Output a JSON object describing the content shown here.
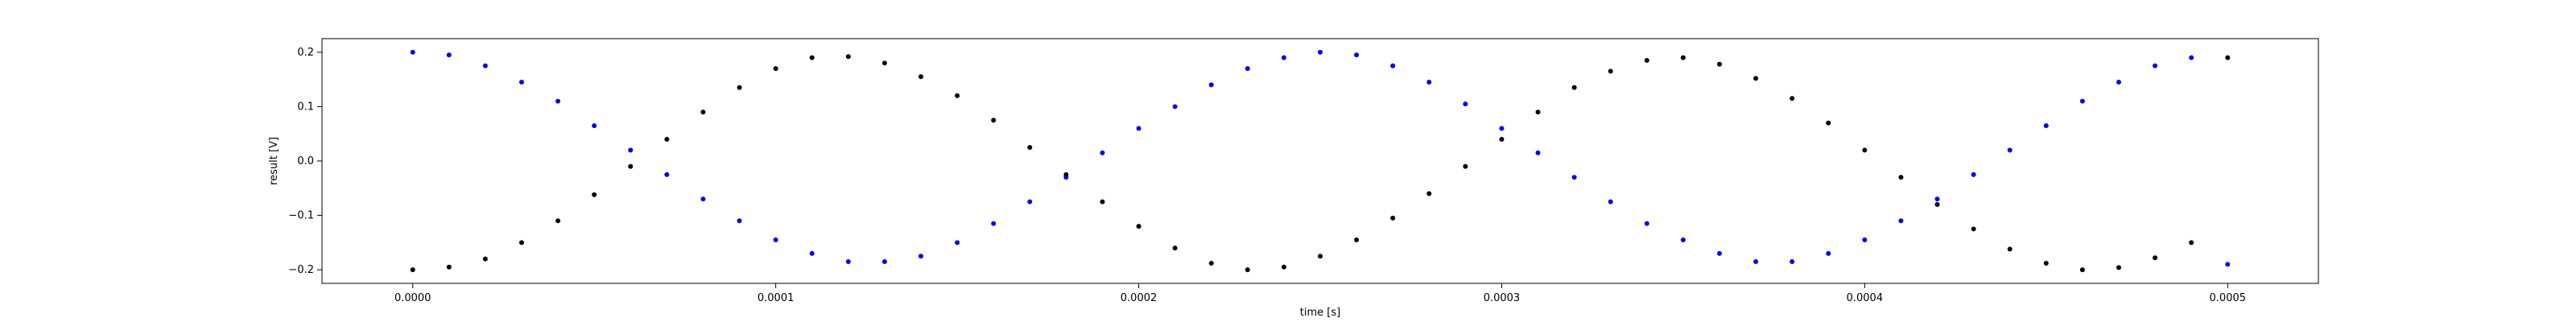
{
  "chart_data": {
    "type": "scatter",
    "title": "",
    "xlabel": "time [s]",
    "ylabel": "result [V]",
    "xlim": [
      -2.5e-05,
      0.000525
    ],
    "ylim": [
      -0.225,
      0.225
    ],
    "xticks": [
      {
        "value": 0.0,
        "label": "0.0000"
      },
      {
        "value": 0.0001,
        "label": "0.0001"
      },
      {
        "value": 0.0002,
        "label": "0.0002"
      },
      {
        "value": 0.0003,
        "label": "0.0003"
      },
      {
        "value": 0.0004,
        "label": "0.0004"
      },
      {
        "value": 0.0005,
        "label": "0.0005"
      }
    ],
    "yticks": [
      {
        "value": -0.2,
        "label": "−0.2"
      },
      {
        "value": -0.1,
        "label": "−0.1"
      },
      {
        "value": 0.0,
        "label": "0.0"
      },
      {
        "value": 0.1,
        "label": "0.1"
      },
      {
        "value": 0.2,
        "label": "0.2"
      }
    ],
    "grid": false,
    "series": [
      {
        "color": "#0000ff",
        "marker": "dot",
        "x": [
          0.0,
          1e-05,
          2e-05,
          3e-05,
          4e-05,
          5e-05,
          6e-05,
          7e-05,
          8e-05,
          9e-05,
          0.0001,
          0.00011,
          0.00012,
          0.00013,
          0.00014,
          0.00015,
          0.00016,
          0.00017,
          0.00018,
          0.00019,
          0.0002,
          0.00021,
          0.00022,
          0.00023,
          0.00024,
          0.00025,
          0.00026,
          0.00027,
          0.00028,
          0.00029,
          0.0003,
          0.00031,
          0.00032,
          0.00033,
          0.00034,
          0.00035,
          0.00036,
          0.00037,
          0.00038,
          0.00039,
          0.0004,
          0.00041,
          0.00042,
          0.00043,
          0.00044,
          0.00045,
          0.00046,
          0.00047,
          0.00048,
          0.00049,
          0.0005
        ],
        "y": [
          0.2,
          0.195,
          0.175,
          0.145,
          0.11,
          0.065,
          0.02,
          -0.025,
          -0.07,
          -0.11,
          -0.145,
          -0.17,
          -0.185,
          -0.185,
          -0.175,
          -0.15,
          -0.115,
          -0.075,
          -0.03,
          0.015,
          0.06,
          0.1,
          0.14,
          0.17,
          0.19,
          0.2,
          0.195,
          0.175,
          0.145,
          0.105,
          0.06,
          0.015,
          -0.03,
          -0.075,
          -0.115,
          -0.145,
          -0.17,
          -0.185,
          -0.185,
          -0.17,
          -0.145,
          -0.11,
          -0.07,
          -0.025,
          0.02,
          0.065,
          0.11,
          0.145,
          0.175,
          0.19,
          -0.19
        ]
      },
      {
        "color": "#000000",
        "marker": "dot",
        "x": [
          0.0,
          1e-05,
          2e-05,
          3e-05,
          4e-05,
          5e-05,
          6e-05,
          7e-05,
          8e-05,
          9e-05,
          0.0001,
          0.00011,
          0.00012,
          0.00013,
          0.00014,
          0.00015,
          0.00016,
          0.00017,
          0.00018,
          0.00019,
          0.0002,
          0.00021,
          0.00022,
          0.00023,
          0.00024,
          0.00025,
          0.00026,
          0.00027,
          0.00028,
          0.00029,
          0.0003,
          0.00031,
          0.00032,
          0.00033,
          0.00034,
          0.00035,
          0.00036,
          0.00037,
          0.00038,
          0.00039,
          0.0004,
          0.00041,
          0.00042,
          0.00043,
          0.00044,
          0.00045,
          0.00046,
          0.00047,
          0.00048,
          0.00049,
          0.0005
        ],
        "y": [
          -0.2,
          -0.195,
          -0.18,
          -0.15,
          -0.11,
          -0.062,
          -0.01,
          0.04,
          0.09,
          0.135,
          0.17,
          0.19,
          0.192,
          0.18,
          0.155,
          0.12,
          0.075,
          0.025,
          -0.025,
          -0.075,
          -0.12,
          -0.16,
          -0.188,
          -0.2,
          -0.195,
          -0.175,
          -0.145,
          -0.105,
          -0.06,
          -0.01,
          0.04,
          0.09,
          0.135,
          0.165,
          0.185,
          0.19,
          0.178,
          0.152,
          0.115,
          0.07,
          0.02,
          -0.03,
          -0.08,
          -0.125,
          -0.162,
          -0.188,
          -0.2,
          -0.196,
          -0.178,
          -0.15,
          0.19
        ]
      }
    ]
  }
}
